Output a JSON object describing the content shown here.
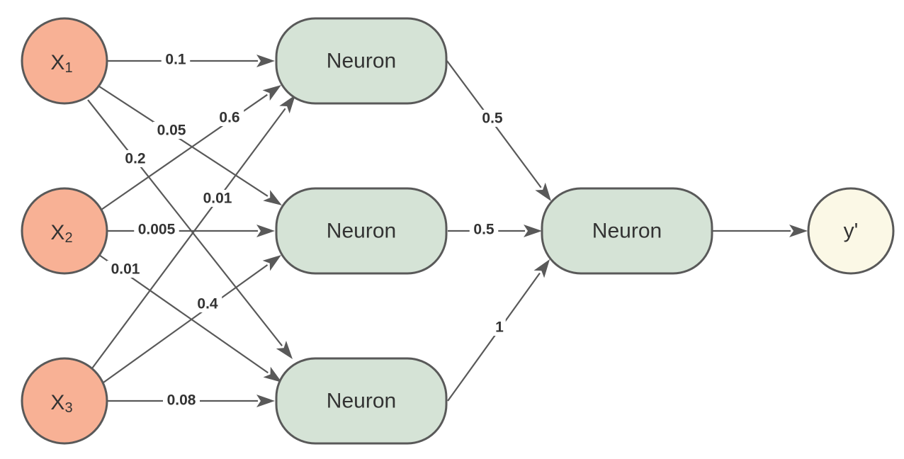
{
  "colors": {
    "input": "#f8b195",
    "hidden": "#d5e3d6",
    "output_node": "#fbf8e6",
    "stroke": "#595959",
    "text": "#333333"
  },
  "inputs": [
    {
      "id": "x1",
      "base": "X",
      "sub": "1"
    },
    {
      "id": "x2",
      "base": "X",
      "sub": "2"
    },
    {
      "id": "x3",
      "base": "X",
      "sub": "3"
    }
  ],
  "hidden_layer": [
    {
      "id": "h1",
      "label": "Neuron"
    },
    {
      "id": "h2",
      "label": "Neuron"
    },
    {
      "id": "h3",
      "label": "Neuron"
    }
  ],
  "output_neuron": {
    "id": "o1",
    "label": "Neuron"
  },
  "prediction": {
    "id": "y",
    "label": "y'"
  },
  "edges": [
    {
      "id": "x1-h1",
      "from": "x1",
      "to": "h1",
      "weight": "0.1"
    },
    {
      "id": "x1-h2",
      "from": "x1",
      "to": "h2",
      "weight": "0.05"
    },
    {
      "id": "x1-h3",
      "from": "x1",
      "to": "h3",
      "weight": "0.2"
    },
    {
      "id": "x2-h1",
      "from": "x2",
      "to": "h1",
      "weight": "0.6"
    },
    {
      "id": "x2-h2",
      "from": "x2",
      "to": "h2",
      "weight": "0.005"
    },
    {
      "id": "x2-h3",
      "from": "x2",
      "to": "h3",
      "weight": "0.01"
    },
    {
      "id": "x3-h1",
      "from": "x3",
      "to": "h1",
      "weight": "0.01"
    },
    {
      "id": "x3-h2",
      "from": "x3",
      "to": "h2",
      "weight": "0.4"
    },
    {
      "id": "x3-h3",
      "from": "x3",
      "to": "h3",
      "weight": "0.08"
    },
    {
      "id": "h1-o1",
      "from": "h1",
      "to": "o1",
      "weight": "0.5"
    },
    {
      "id": "h2-o1",
      "from": "h2",
      "to": "o1",
      "weight": "0.5"
    },
    {
      "id": "h3-o1",
      "from": "h3",
      "to": "o1",
      "weight": "1"
    },
    {
      "id": "o1-y",
      "from": "o1",
      "to": "y",
      "weight": ""
    }
  ]
}
